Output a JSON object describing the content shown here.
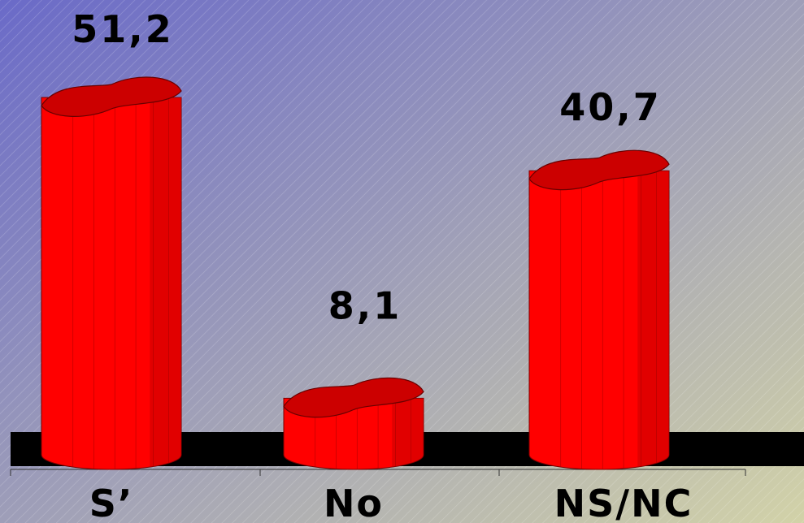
{
  "chart_data": {
    "type": "bar",
    "categories": [
      "S’",
      "No",
      "NS/NC"
    ],
    "values": [
      51.2,
      8.1,
      40.7
    ],
    "value_labels": [
      "51,2",
      "8,1",
      "40,7"
    ],
    "title": "",
    "xlabel": "",
    "ylabel": "",
    "ylim": [
      0,
      55
    ],
    "grid": false,
    "legend": "none",
    "bar_shape": "3d-cylinder"
  },
  "colors": {
    "bar_fill": "#ff0000",
    "bar_dark": "#c80000",
    "bar_top": "#cc0000",
    "floor": "#000000",
    "background_start": "#6a6ac8",
    "background_end": "#d2d2a8",
    "text": "#000000"
  }
}
